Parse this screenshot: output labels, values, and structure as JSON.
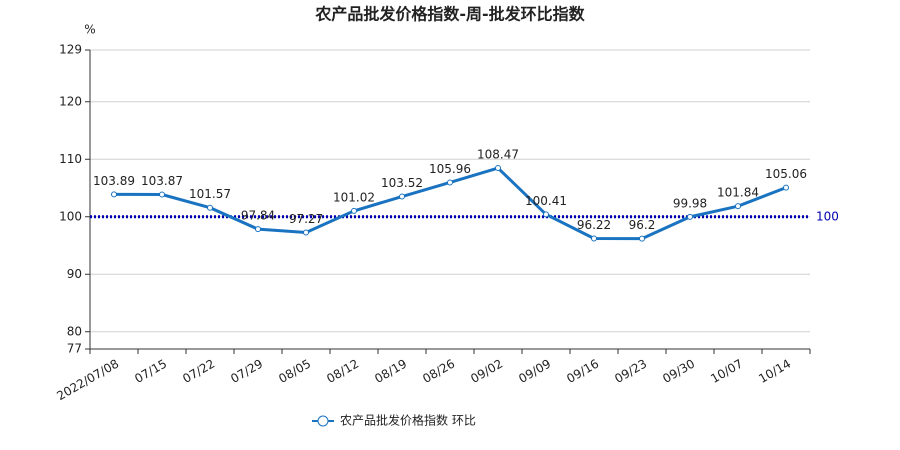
{
  "chart_data": {
    "type": "line",
    "title": "农产品批发价格指数-周-批发环比指数",
    "y_unit": "%",
    "categories": [
      "2022/07/08",
      "07/15",
      "07/22",
      "07/29",
      "08/05",
      "08/12",
      "08/19",
      "08/26",
      "09/02",
      "09/09",
      "09/16",
      "09/23",
      "09/30",
      "10/07",
      "10/14"
    ],
    "series": [
      {
        "name": "农产品批发价格指数 环比",
        "color": "#1a73c0",
        "values": [
          103.89,
          103.87,
          101.57,
          97.84,
          97.27,
          101.02,
          103.52,
          105.96,
          108.47,
          100.41,
          96.22,
          96.2,
          99.98,
          101.84,
          105.06
        ]
      }
    ],
    "ylim": [
      77,
      129
    ],
    "yticks": [
      77,
      80,
      90,
      100,
      110,
      120,
      129
    ],
    "grid": true,
    "reference_line": {
      "value": 100,
      "color": "#0000b0"
    },
    "legend": "bottom"
  }
}
